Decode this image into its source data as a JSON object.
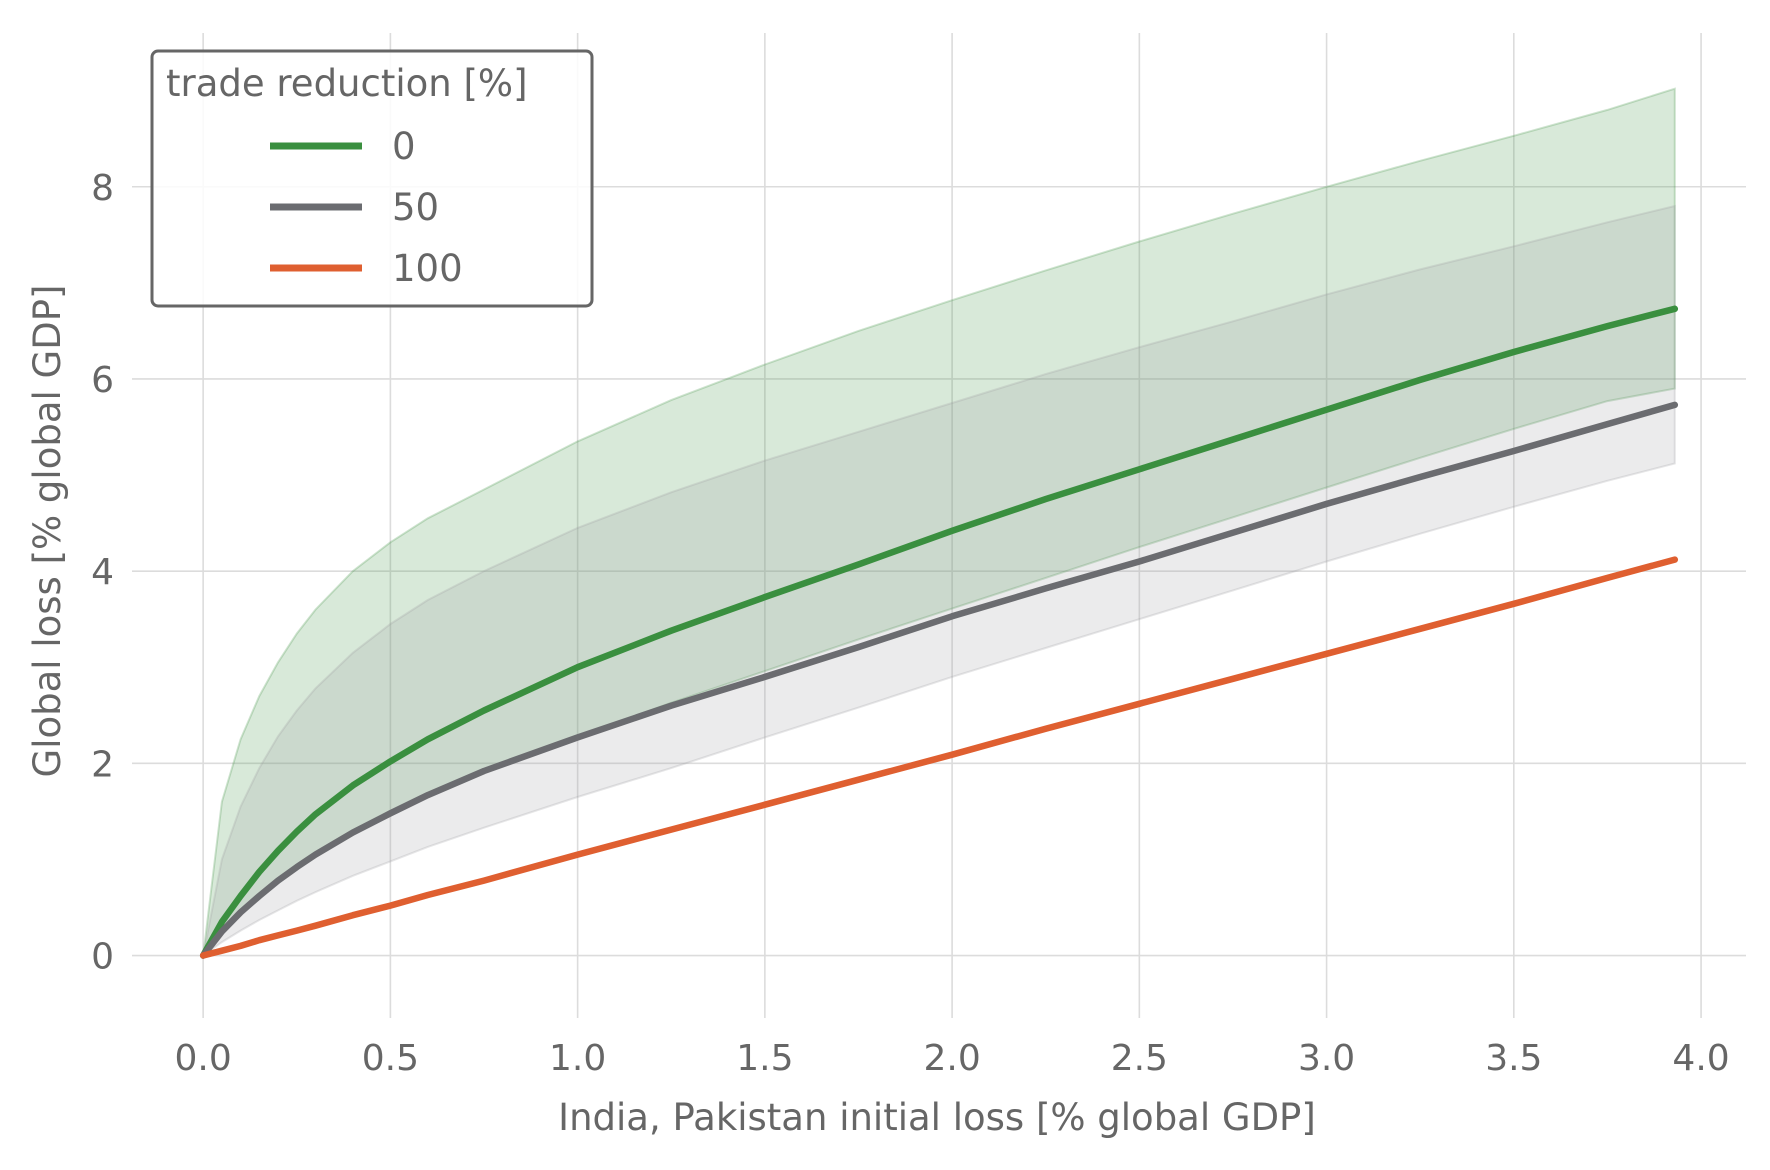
{
  "chart_data": {
    "type": "line",
    "xlabel": "India, Pakistan initial loss [% global GDP]",
    "ylabel": "Global loss [% global GDP]",
    "xlim": [
      -0.19,
      4.12
    ],
    "ylim": [
      -0.65,
      9.6
    ],
    "xticks": [
      0.0,
      0.5,
      1.0,
      1.5,
      2.0,
      2.5,
      3.0,
      3.5,
      4.0
    ],
    "xtick_labels": [
      "0.0",
      "0.5",
      "1.0",
      "1.5",
      "2.0",
      "2.5",
      "3.0",
      "3.5",
      "4.0"
    ],
    "yticks": [
      0,
      2,
      4,
      6,
      8
    ],
    "ytick_labels": [
      "0",
      "2",
      "4",
      "6",
      "8"
    ],
    "grid": true,
    "legend": {
      "title": "trade reduction [%]",
      "position": "top-left"
    },
    "x": [
      0.0,
      0.05,
      0.1,
      0.15,
      0.2,
      0.25,
      0.3,
      0.4,
      0.5,
      0.6,
      0.75,
      1.0,
      1.25,
      1.5,
      1.75,
      2.0,
      2.25,
      2.5,
      2.75,
      3.0,
      3.25,
      3.5,
      3.75,
      3.93
    ],
    "series": [
      {
        "name": "0",
        "color": "#3a8f3f",
        "band_color": "#3a8f3f",
        "values": [
          0.0,
          0.35,
          0.62,
          0.87,
          1.09,
          1.29,
          1.47,
          1.77,
          2.02,
          2.25,
          2.55,
          3.0,
          3.38,
          3.73,
          4.07,
          4.42,
          4.75,
          5.06,
          5.37,
          5.68,
          5.99,
          6.28,
          6.55,
          6.73
        ],
        "lower": [
          0.0,
          0.24,
          0.43,
          0.6,
          0.76,
          0.9,
          1.03,
          1.26,
          1.46,
          1.65,
          1.9,
          2.28,
          2.63,
          2.96,
          3.29,
          3.61,
          3.93,
          4.25,
          4.56,
          4.87,
          5.18,
          5.48,
          5.77,
          5.9
        ],
        "upper": [
          0.0,
          1.6,
          2.25,
          2.7,
          3.05,
          3.35,
          3.6,
          4.0,
          4.3,
          4.55,
          4.85,
          5.35,
          5.78,
          6.15,
          6.5,
          6.82,
          7.13,
          7.43,
          7.72,
          8.0,
          8.27,
          8.53,
          8.8,
          9.02
        ]
      },
      {
        "name": "50",
        "color": "#6b6c70",
        "band_color": "#9a9b9f",
        "values": [
          0.0,
          0.25,
          0.45,
          0.62,
          0.78,
          0.92,
          1.05,
          1.28,
          1.48,
          1.67,
          1.92,
          2.27,
          2.6,
          2.9,
          3.21,
          3.53,
          3.82,
          4.1,
          4.4,
          4.7,
          4.98,
          5.25,
          5.53,
          5.73
        ],
        "lower": [
          0.0,
          0.14,
          0.26,
          0.37,
          0.47,
          0.57,
          0.66,
          0.83,
          0.98,
          1.13,
          1.33,
          1.65,
          1.95,
          2.27,
          2.58,
          2.9,
          3.2,
          3.5,
          3.8,
          4.1,
          4.39,
          4.67,
          4.94,
          5.12
        ],
        "upper": [
          0.0,
          1.0,
          1.55,
          1.95,
          2.28,
          2.55,
          2.78,
          3.15,
          3.45,
          3.7,
          4.0,
          4.45,
          4.82,
          5.15,
          5.45,
          5.75,
          6.05,
          6.33,
          6.6,
          6.88,
          7.14,
          7.38,
          7.63,
          7.8
        ]
      },
      {
        "name": "100",
        "color": "#df5f30",
        "values": [
          0.0,
          0.05,
          0.1,
          0.16,
          0.21,
          0.26,
          0.31,
          0.42,
          0.52,
          0.63,
          0.78,
          1.05,
          1.31,
          1.57,
          1.83,
          2.09,
          2.36,
          2.62,
          2.88,
          3.14,
          3.4,
          3.66,
          3.93,
          4.12
        ]
      }
    ]
  }
}
